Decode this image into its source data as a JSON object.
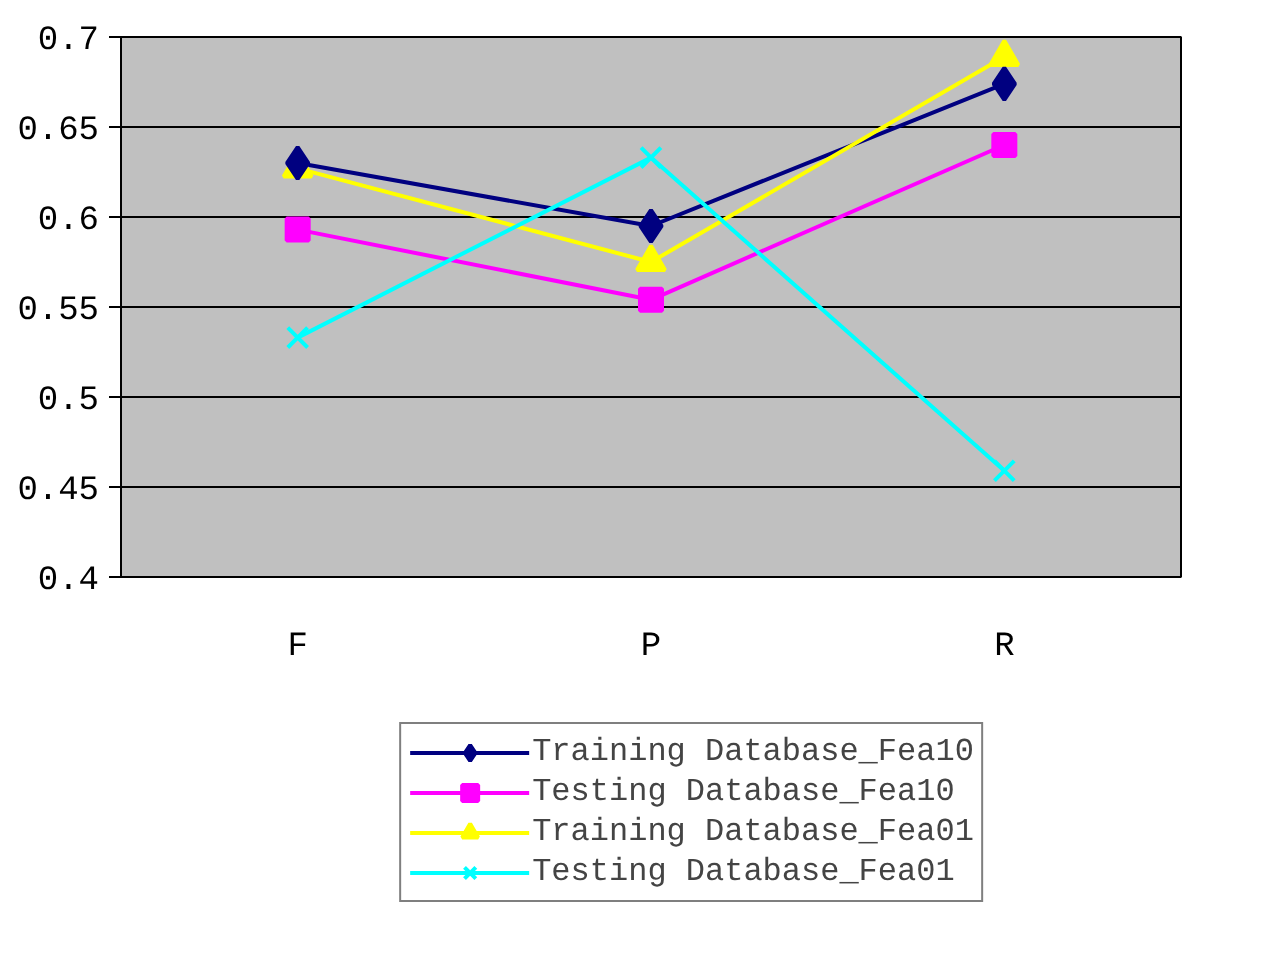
{
  "chart_data": {
    "type": "line",
    "categories": [
      "F",
      "P",
      "R"
    ],
    "ylim": [
      0.4,
      0.7
    ],
    "yticks": [
      {
        "value": 0.4,
        "label": "0.4"
      },
      {
        "value": 0.45,
        "label": "0.45"
      },
      {
        "value": 0.5,
        "label": "0.5"
      },
      {
        "value": 0.55,
        "label": "0.55"
      },
      {
        "value": 0.6,
        "label": "0.6"
      },
      {
        "value": 0.65,
        "label": "0.65"
      },
      {
        "value": 0.7,
        "label": "0.7"
      }
    ],
    "grid": "y",
    "legend": "bottom",
    "line_style": "solid",
    "series": [
      {
        "name": "Training Database_Fea10",
        "color": "#000080",
        "marker": "diamond",
        "values": [
          0.63,
          0.595,
          0.674
        ]
      },
      {
        "name": "Testing Database_Fea10",
        "color": "#ff00ff",
        "marker": "square",
        "values": [
          0.593,
          0.554,
          0.64
        ]
      },
      {
        "name": "Training Database_Fea01",
        "color": "#ffff00",
        "marker": "triangle",
        "values": [
          0.627,
          0.575,
          0.689
        ]
      },
      {
        "name": "Testing Database_Fea01",
        "color": "#00ffff",
        "marker": "cross",
        "values": [
          0.533,
          0.633,
          0.459
        ]
      }
    ]
  }
}
